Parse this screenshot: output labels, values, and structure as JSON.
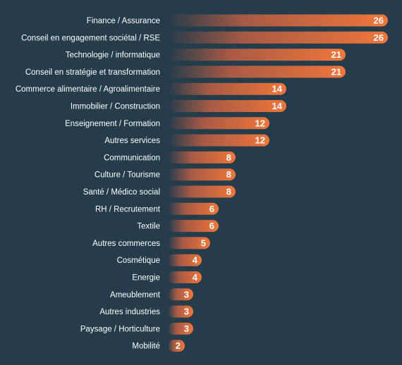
{
  "chart_data": {
    "type": "bar",
    "orientation": "horizontal",
    "categories": [
      "Finance / Assurance",
      "Conseil en engagement sociétal / RSE",
      "Technologie / informatique",
      "Conseil en stratégie et transformation",
      "Commerce alimentaire / Agroalimentaire",
      "Immobilier / Construction",
      "Enseignement / Formation",
      "Autres services",
      "Communication",
      "Culture / Tourisme",
      "Santé / Médico social",
      "RH / Recrutement",
      "Textile",
      "Autres commerces",
      "Cosmétique",
      "Energie",
      "Ameublement",
      "Autres industries",
      "Paysage / Horticulture",
      "Mobilité"
    ],
    "values": [
      26,
      26,
      21,
      21,
      14,
      14,
      12,
      12,
      8,
      8,
      8,
      6,
      6,
      5,
      4,
      4,
      3,
      3,
      3,
      2
    ],
    "title": "",
    "xlabel": "",
    "ylabel": "",
    "xlim": [
      0,
      26
    ],
    "grid": false,
    "legend": "none",
    "data_labels": "inside-end",
    "colors": {
      "background": "#253c4b",
      "bar_start": "#253c4b",
      "bar_end": "#f0763a",
      "text": "#ffffff"
    }
  }
}
